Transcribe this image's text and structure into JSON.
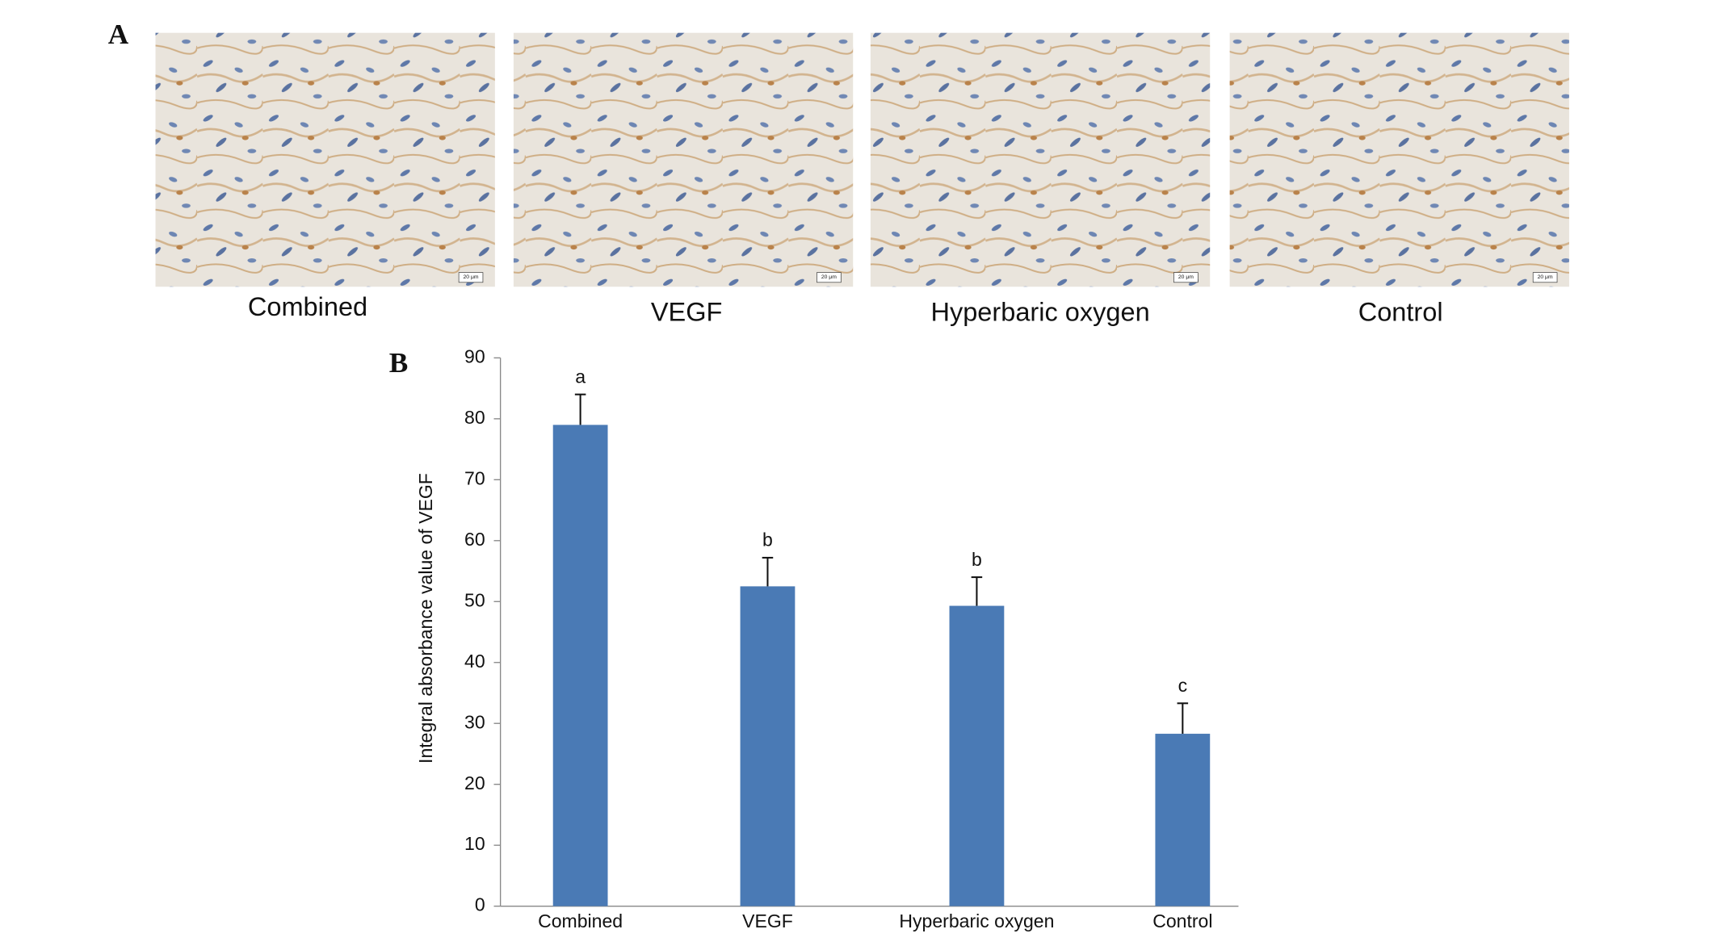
{
  "panel_a": {
    "label": "A",
    "scale_bar": "20 μm",
    "captions": [
      "Combined",
      "VEGF",
      "Hyperbaric oxygen",
      "Control"
    ]
  },
  "chart_data": {
    "type": "bar",
    "panel_label": "B",
    "y_label": "Integral absorbance value of VEGF",
    "categories": [
      "Combined",
      "VEGF",
      "Hyperbaric oxygen",
      "Control"
    ],
    "series": [
      {
        "color": "#4a7ab5",
        "values": [
          79,
          52.5,
          49.3,
          28.3
        ],
        "errors": [
          5,
          4.7,
          4.7,
          5
        ]
      }
    ],
    "annotations": [
      "a",
      "b",
      "b",
      "c"
    ],
    "ylim": [
      0,
      90
    ],
    "yticks": [
      0,
      10,
      20,
      30,
      40,
      50,
      60,
      70,
      80,
      90
    ]
  }
}
